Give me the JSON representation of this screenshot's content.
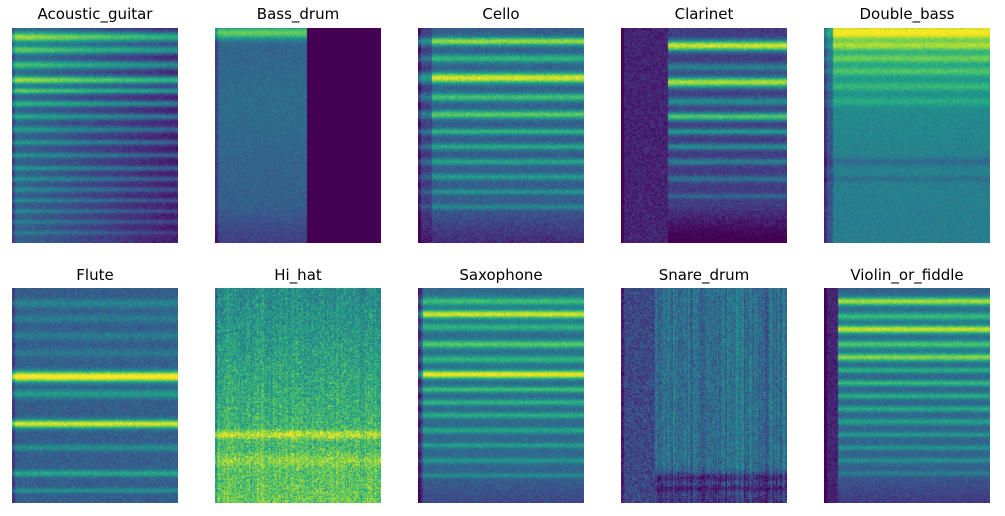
{
  "chart_data": [
    {
      "type": "heatmap",
      "title": "Acoustic_guitar",
      "colormap": "viridis",
      "pattern": {
        "base": 0.32,
        "noise": 0.07,
        "onset": 0.0,
        "after": null,
        "decay": 0.25,
        "bands": [
          [
            0.04,
            0.55,
            0.025
          ],
          [
            0.1,
            0.45,
            0.02
          ],
          [
            0.17,
            0.4,
            0.02
          ],
          [
            0.24,
            0.55,
            0.02
          ],
          [
            0.29,
            0.45,
            0.015
          ],
          [
            0.35,
            0.35,
            0.015
          ],
          [
            0.41,
            0.3,
            0.015
          ],
          [
            0.47,
            0.25,
            0.015
          ],
          [
            0.53,
            0.25,
            0.012
          ],
          [
            0.59,
            0.22,
            0.012
          ],
          [
            0.65,
            0.22,
            0.012
          ],
          [
            0.7,
            0.2,
            0.012
          ],
          [
            0.75,
            0.18,
            0.012
          ],
          [
            0.8,
            0.18,
            0.01
          ],
          [
            0.85,
            0.16,
            0.01
          ],
          [
            0.9,
            0.14,
            0.01
          ],
          [
            0.95,
            0.12,
            0.01
          ]
        ]
      }
    },
    {
      "type": "heatmap",
      "title": "Bass_drum",
      "colormap": "viridis",
      "pattern": {
        "base": 0.3,
        "noise": 0.06,
        "onset": 0.0,
        "after": 0.55,
        "decay": 0.0,
        "bottomFade": 0.12,
        "bands": [
          [
            0.02,
            0.45,
            0.03
          ],
          [
            0.35,
            0.05,
            0.3
          ]
        ]
      }
    },
    {
      "type": "heatmap",
      "title": "Cello",
      "colormap": "viridis",
      "pattern": {
        "base": 0.3,
        "noise": 0.08,
        "onset": 0.08,
        "after": null,
        "decay": 0.0,
        "bottomFade": 0.18,
        "bands": [
          [
            0.06,
            0.55,
            0.02
          ],
          [
            0.14,
            0.35,
            0.02
          ],
          [
            0.23,
            0.65,
            0.025
          ],
          [
            0.32,
            0.4,
            0.02
          ],
          [
            0.4,
            0.45,
            0.02
          ],
          [
            0.48,
            0.35,
            0.015
          ],
          [
            0.55,
            0.3,
            0.015
          ],
          [
            0.62,
            0.28,
            0.015
          ],
          [
            0.69,
            0.25,
            0.015
          ],
          [
            0.76,
            0.22,
            0.012
          ],
          [
            0.83,
            0.18,
            0.012
          ]
        ]
      }
    },
    {
      "type": "heatmap",
      "title": "Clarinet",
      "colormap": "viridis",
      "pattern": {
        "base": 0.18,
        "noise": 0.08,
        "onset": 0.28,
        "pre": 0.1,
        "after": null,
        "decay": 0.0,
        "bottomFade": 0.25,
        "bands": [
          [
            0.08,
            0.75,
            0.025
          ],
          [
            0.18,
            0.25,
            0.02
          ],
          [
            0.25,
            0.7,
            0.025
          ],
          [
            0.34,
            0.3,
            0.02
          ],
          [
            0.41,
            0.55,
            0.02
          ],
          [
            0.48,
            0.35,
            0.015
          ],
          [
            0.55,
            0.3,
            0.015
          ],
          [
            0.62,
            0.25,
            0.015
          ],
          [
            0.7,
            0.2,
            0.015
          ],
          [
            0.78,
            0.15,
            0.012
          ]
        ]
      }
    },
    {
      "type": "heatmap",
      "title": "Double_bass",
      "colormap": "viridis",
      "pattern": {
        "base": 0.42,
        "noise": 0.06,
        "onset": 0.05,
        "after": null,
        "decay": 0.0,
        "topBoost": 0.28,
        "bands": [
          [
            0.02,
            0.35,
            0.03
          ],
          [
            0.08,
            0.25,
            0.02
          ],
          [
            0.14,
            0.2,
            0.02
          ],
          [
            0.2,
            0.18,
            0.02
          ],
          [
            0.27,
            0.15,
            0.02
          ],
          [
            0.34,
            0.12,
            0.02
          ],
          [
            0.62,
            -0.1,
            0.02
          ],
          [
            0.7,
            -0.08,
            0.015
          ]
        ]
      }
    },
    {
      "type": "heatmap",
      "title": "Flute",
      "colormap": "viridis",
      "pattern": {
        "base": 0.3,
        "noise": 0.08,
        "onset": 0.0,
        "after": null,
        "decay": 0.0,
        "bands": [
          [
            0.07,
            0.15,
            0.02
          ],
          [
            0.14,
            0.12,
            0.02
          ],
          [
            0.22,
            0.12,
            0.02
          ],
          [
            0.3,
            0.1,
            0.02
          ],
          [
            0.41,
            0.75,
            0.025
          ],
          [
            0.49,
            0.25,
            0.02
          ],
          [
            0.63,
            0.65,
            0.02
          ],
          [
            0.74,
            0.2,
            0.015
          ],
          [
            0.86,
            0.3,
            0.015
          ],
          [
            0.94,
            0.2,
            0.012
          ]
        ]
      }
    },
    {
      "type": "heatmap",
      "title": "Hi_hat",
      "colormap": "viridis",
      "pattern": {
        "base": 0.48,
        "noise": 0.18,
        "onset": 0.0,
        "after": null,
        "decay": 0.0,
        "grad": 0.28,
        "vstreak": 0.12,
        "bands": [
          [
            0.68,
            0.25,
            0.02
          ],
          [
            0.8,
            0.12,
            0.03
          ]
        ]
      }
    },
    {
      "type": "heatmap",
      "title": "Saxophone",
      "colormap": "viridis",
      "pattern": {
        "base": 0.34,
        "noise": 0.07,
        "onset": 0.03,
        "after": null,
        "decay": 0.0,
        "bottomFade": 0.12,
        "bands": [
          [
            0.06,
            0.35,
            0.02
          ],
          [
            0.12,
            0.6,
            0.02
          ],
          [
            0.18,
            0.3,
            0.02
          ],
          [
            0.26,
            0.4,
            0.02
          ],
          [
            0.33,
            0.3,
            0.02
          ],
          [
            0.4,
            0.65,
            0.02
          ],
          [
            0.47,
            0.35,
            0.015
          ],
          [
            0.53,
            0.3,
            0.015
          ],
          [
            0.59,
            0.28,
            0.015
          ],
          [
            0.66,
            0.25,
            0.015
          ],
          [
            0.73,
            0.22,
            0.012
          ],
          [
            0.8,
            0.2,
            0.012
          ],
          [
            0.87,
            0.18,
            0.012
          ]
        ]
      }
    },
    {
      "type": "heatmap",
      "title": "Snare_drum",
      "colormap": "viridis",
      "pattern": {
        "base": 0.36,
        "noise": 0.14,
        "onset": 0.2,
        "pre": 0.22,
        "after": null,
        "decay": 0.0,
        "vstreak": 0.22,
        "bottomFade": 0.22,
        "bands": [
          [
            0.88,
            -0.18,
            0.02
          ],
          [
            0.93,
            -0.15,
            0.015
          ]
        ]
      }
    },
    {
      "type": "heatmap",
      "title": "Violin_or_fiddle",
      "colormap": "viridis",
      "pattern": {
        "base": 0.32,
        "noise": 0.07,
        "onset": 0.08,
        "pre": 0.1,
        "after": null,
        "decay": 0.0,
        "bottomFade": 0.15,
        "bands": [
          [
            0.06,
            0.55,
            0.02
          ],
          [
            0.13,
            0.35,
            0.02
          ],
          [
            0.19,
            0.6,
            0.02
          ],
          [
            0.26,
            0.4,
            0.02
          ],
          [
            0.32,
            0.5,
            0.02
          ],
          [
            0.38,
            0.3,
            0.015
          ],
          [
            0.44,
            0.35,
            0.015
          ],
          [
            0.5,
            0.3,
            0.015
          ],
          [
            0.56,
            0.28,
            0.015
          ],
          [
            0.62,
            0.25,
            0.015
          ],
          [
            0.68,
            0.22,
            0.012
          ],
          [
            0.74,
            0.2,
            0.012
          ],
          [
            0.8,
            0.18,
            0.012
          ],
          [
            0.86,
            0.15,
            0.012
          ]
        ]
      }
    }
  ]
}
